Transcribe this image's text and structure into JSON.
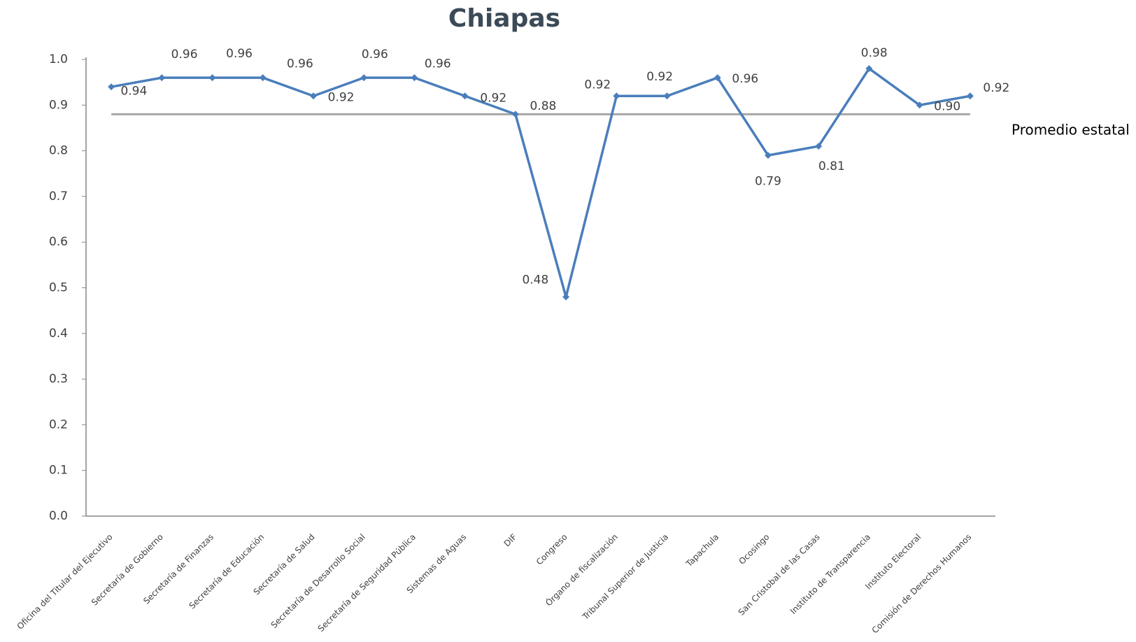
{
  "chart_data": {
    "type": "line",
    "title": "Chiapas",
    "categories": [
      "Oficina del Titular del Ejecutivo",
      "Secretaría de Gobierno",
      "Secretaría de Finanzas",
      "Secretaría de Educación",
      "Secretaría de Salud",
      "Secretaría de Desarrollo Social",
      "Secretaría de Seguridad Pública",
      "Sistemas de Aguas",
      "DIF",
      "Congreso",
      "Órgano de fiscalización",
      "Tribunal Superior de Justicia",
      "Tapachula",
      "Ocosingo",
      "San Cristobal de las Casas",
      "Instituto de Transparencia",
      "Instituto Electoral",
      "Comisión de Derechos Humanos"
    ],
    "series": [
      {
        "name": "Chiapas",
        "color": "#4a7ebb",
        "values": [
          0.94,
          0.96,
          0.96,
          0.96,
          0.92,
          0.96,
          0.96,
          0.92,
          0.88,
          0.48,
          0.92,
          0.92,
          0.96,
          0.79,
          0.81,
          0.98,
          0.9,
          0.92
        ],
        "value_labels": [
          "0.94",
          "0.96",
          "0.96",
          "0.96",
          "0.92",
          "0.96",
          "0.96",
          "0.92",
          "0.88",
          "0.48",
          "0.92",
          "0.92",
          "0.96",
          "0.79",
          "0.81",
          "0.98",
          "0.90",
          "0.92"
        ]
      }
    ],
    "reference_line": {
      "label": "Promedio estatal",
      "value": 0.88,
      "color": "#a6a6a6"
    },
    "ylim": [
      0,
      1
    ],
    "yticks": [
      {
        "value": 0,
        "label": "0.0"
      },
      0.1,
      0.2,
      0.3,
      0.4,
      0.5,
      0.6,
      0.7,
      0.8,
      0.9,
      {
        "value": 1,
        "label": "1.0"
      }
    ],
    "grid": false
  }
}
